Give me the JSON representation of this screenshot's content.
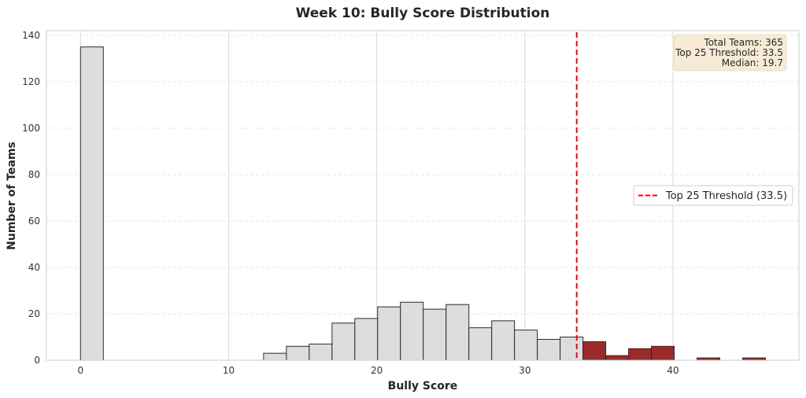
{
  "chart_data": {
    "type": "bar",
    "title": "Week 10: Bully Score Distribution",
    "xlabel": "Bully Score",
    "ylabel": "Number of Teams",
    "xlim": [
      -2.3,
      48.5
    ],
    "ylim": [
      0,
      142
    ],
    "xticks": [
      0,
      10,
      20,
      30,
      40
    ],
    "yticks": [
      0,
      20,
      40,
      60,
      80,
      100,
      120,
      140
    ],
    "grid": true,
    "bin_width": 1.54,
    "bins": [
      {
        "start": 0.0,
        "count": 135,
        "highlight": false
      },
      {
        "start": 12.36,
        "count": 3,
        "highlight": false
      },
      {
        "start": 13.9,
        "count": 6,
        "highlight": false
      },
      {
        "start": 15.44,
        "count": 7,
        "highlight": false
      },
      {
        "start": 16.98,
        "count": 16,
        "highlight": false
      },
      {
        "start": 18.52,
        "count": 18,
        "highlight": false
      },
      {
        "start": 20.06,
        "count": 23,
        "highlight": false
      },
      {
        "start": 21.6,
        "count": 25,
        "highlight": false
      },
      {
        "start": 23.14,
        "count": 22,
        "highlight": false
      },
      {
        "start": 24.68,
        "count": 24,
        "highlight": false
      },
      {
        "start": 26.22,
        "count": 14,
        "highlight": false
      },
      {
        "start": 27.76,
        "count": 17,
        "highlight": false
      },
      {
        "start": 29.3,
        "count": 13,
        "highlight": false
      },
      {
        "start": 30.84,
        "count": 9,
        "highlight": false
      },
      {
        "start": 32.38,
        "count": 10,
        "highlight": false
      },
      {
        "start": 33.92,
        "count": 8,
        "highlight": true
      },
      {
        "start": 35.46,
        "count": 2,
        "highlight": true
      },
      {
        "start": 37.0,
        "count": 5,
        "highlight": true
      },
      {
        "start": 38.54,
        "count": 6,
        "highlight": true
      },
      {
        "start": 41.62,
        "count": 1,
        "highlight": true
      },
      {
        "start": 44.7,
        "count": 1,
        "highlight": true
      }
    ],
    "threshold": {
      "value": 33.5,
      "label": "Top 25 Threshold (33.5)",
      "color": "#ff0000"
    },
    "legend_position": "center-right",
    "stats": {
      "total_teams": "Total Teams: 365",
      "threshold": "Top 25 Threshold: 33.5",
      "median": "Median: 19.7"
    },
    "colors": {
      "bar": "#dddddd",
      "highlight_bar": "#9b2a2a",
      "bar_edge": "#2b2b2b",
      "grid": "#d9d9d9",
      "stats_box": "#f7ebd6"
    }
  }
}
